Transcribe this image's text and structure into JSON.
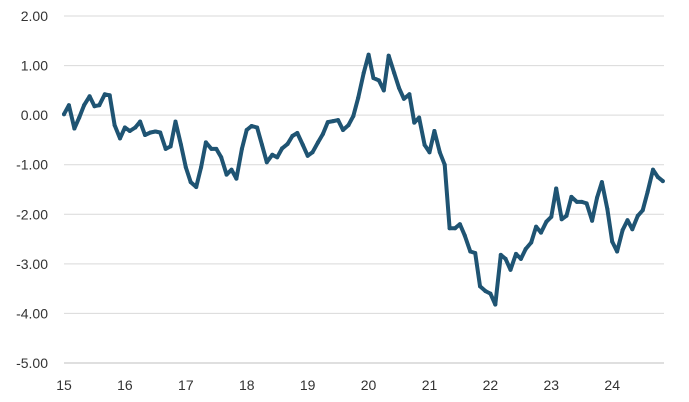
{
  "chart_data": {
    "type": "line",
    "title": "",
    "xlabel": "",
    "ylabel": "",
    "xlim": [
      15,
      24.85
    ],
    "ylim": [
      -5,
      2
    ],
    "x_ticks": [
      15,
      16,
      17,
      18,
      19,
      20,
      21,
      22,
      23,
      24
    ],
    "x_tick_labels": [
      "15",
      "16",
      "17",
      "18",
      "19",
      "20",
      "21",
      "22",
      "23",
      "24"
    ],
    "y_ticks": [
      2,
      1,
      0,
      -1,
      -2,
      -3,
      -4,
      -5
    ],
    "y_tick_labels": [
      "2.00",
      "1.00",
      "0.00",
      "-1.00",
      "-2.00",
      "-3.00",
      "-4.00",
      "-5.00"
    ],
    "grid": "horizontal",
    "colors": {
      "series": "#1f5473",
      "grid": "#d9d9d9",
      "axis": "#bfbfbf",
      "text": "#333333"
    },
    "series": [
      {
        "x": [
          15.0,
          15.08,
          15.17,
          15.25,
          15.33,
          15.42,
          15.5,
          15.58,
          15.67,
          15.75,
          15.83,
          15.92,
          16.0,
          16.08,
          16.17,
          16.25,
          16.33,
          16.42,
          16.5,
          16.58,
          16.67,
          16.75,
          16.83,
          16.92,
          17.0,
          17.08,
          17.17,
          17.25,
          17.33,
          17.42,
          17.5,
          17.58,
          17.67,
          17.75,
          17.83,
          17.92,
          18.0,
          18.08,
          18.17,
          18.25,
          18.33,
          18.42,
          18.5,
          18.58,
          18.67,
          18.75,
          18.83,
          18.92,
          19.0,
          19.08,
          19.17,
          19.25,
          19.33,
          19.42,
          19.5,
          19.58,
          19.67,
          19.75,
          19.83,
          19.92,
          20.0,
          20.08,
          20.17,
          20.25,
          20.33,
          20.42,
          20.5,
          20.58,
          20.67,
          20.75,
          20.83,
          20.92,
          21.0,
          21.08,
          21.17,
          21.25,
          21.33,
          21.42,
          21.5,
          21.58,
          21.67,
          21.75,
          21.83,
          21.92,
          22.0,
          22.08,
          22.17,
          22.25,
          22.33,
          22.42,
          22.5,
          22.58,
          22.67,
          22.75,
          22.83,
          22.92,
          23.0,
          23.08,
          23.17,
          23.25,
          23.33,
          23.42,
          23.5,
          23.58,
          23.67,
          23.75,
          23.83,
          23.92,
          24.0,
          24.08,
          24.17,
          24.25,
          24.33,
          24.42,
          24.5,
          24.58,
          24.67,
          24.75,
          24.83
        ],
        "values": [
          0.02,
          0.2,
          -0.27,
          -0.05,
          0.2,
          0.38,
          0.18,
          0.2,
          0.42,
          0.4,
          -0.2,
          -0.47,
          -0.25,
          -0.32,
          -0.25,
          -0.13,
          -0.4,
          -0.35,
          -0.33,
          -0.35,
          -0.68,
          -0.63,
          -0.13,
          -0.6,
          -1.05,
          -1.35,
          -1.45,
          -1.05,
          -0.55,
          -0.68,
          -0.68,
          -0.85,
          -1.2,
          -1.1,
          -1.28,
          -0.68,
          -0.3,
          -0.22,
          -0.25,
          -0.6,
          -0.95,
          -0.8,
          -0.85,
          -0.67,
          -0.58,
          -0.42,
          -0.36,
          -0.6,
          -0.82,
          -0.75,
          -0.55,
          -0.38,
          -0.14,
          -0.12,
          -0.1,
          -0.3,
          -0.2,
          -0.02,
          0.35,
          0.85,
          1.22,
          0.75,
          0.7,
          0.5,
          1.2,
          0.85,
          0.55,
          0.33,
          0.42,
          -0.15,
          -0.05,
          -0.6,
          -0.75,
          -0.32,
          -0.75,
          -1.0,
          -2.28,
          -2.28,
          -2.2,
          -2.43,
          -2.75,
          -2.78,
          -3.45,
          -3.55,
          -3.6,
          -3.82,
          -2.82,
          -2.9,
          -3.12,
          -2.8,
          -2.9,
          -2.7,
          -2.57,
          -2.25,
          -2.37,
          -2.15,
          -2.05,
          -1.48,
          -2.1,
          -2.03,
          -1.65,
          -1.75,
          -1.75,
          -1.78,
          -2.13,
          -1.67,
          -1.35,
          -1.9,
          -2.55,
          -2.75,
          -2.32,
          -2.12,
          -2.3,
          -2.03,
          -1.92,
          -1.55,
          -1.1,
          -1.25,
          -1.33
        ]
      }
    ]
  }
}
